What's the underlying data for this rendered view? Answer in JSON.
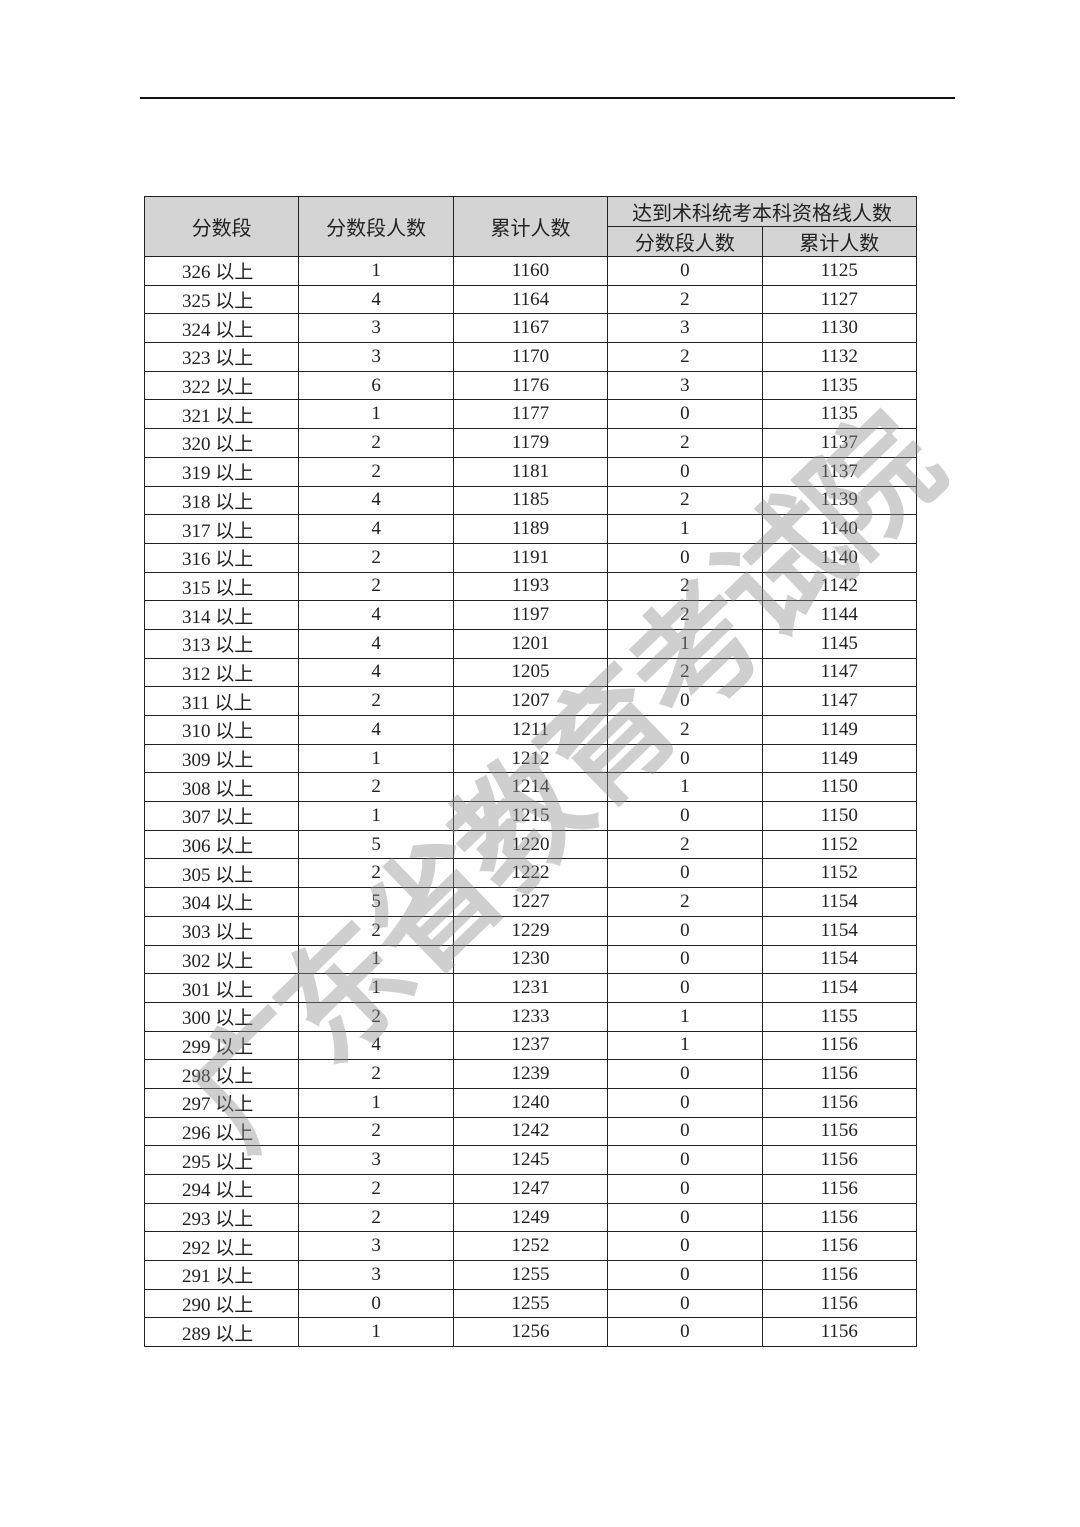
{
  "headers": {
    "score_band": "分数段",
    "band_count": "分数段人数",
    "cumulative": "累计人数",
    "qualified_group": "达到术科统考本科资格线人数",
    "qualified_band_count": "分数段人数",
    "qualified_cumulative": "累计人数"
  },
  "suffix": "以上",
  "watermark": "广东省教育考试院",
  "rows": [
    [
      "326",
      1,
      1160,
      0,
      1125
    ],
    [
      "325",
      4,
      1164,
      2,
      1127
    ],
    [
      "324",
      3,
      1167,
      3,
      1130
    ],
    [
      "323",
      3,
      1170,
      2,
      1132
    ],
    [
      "322",
      6,
      1176,
      3,
      1135
    ],
    [
      "321",
      1,
      1177,
      0,
      1135
    ],
    [
      "320",
      2,
      1179,
      2,
      1137
    ],
    [
      "319",
      2,
      1181,
      0,
      1137
    ],
    [
      "318",
      4,
      1185,
      2,
      1139
    ],
    [
      "317",
      4,
      1189,
      1,
      1140
    ],
    [
      "316",
      2,
      1191,
      0,
      1140
    ],
    [
      "315",
      2,
      1193,
      2,
      1142
    ],
    [
      "314",
      4,
      1197,
      2,
      1144
    ],
    [
      "313",
      4,
      1201,
      1,
      1145
    ],
    [
      "312",
      4,
      1205,
      2,
      1147
    ],
    [
      "311",
      2,
      1207,
      0,
      1147
    ],
    [
      "310",
      4,
      1211,
      2,
      1149
    ],
    [
      "309",
      1,
      1212,
      0,
      1149
    ],
    [
      "308",
      2,
      1214,
      1,
      1150
    ],
    [
      "307",
      1,
      1215,
      0,
      1150
    ],
    [
      "306",
      5,
      1220,
      2,
      1152
    ],
    [
      "305",
      2,
      1222,
      0,
      1152
    ],
    [
      "304",
      5,
      1227,
      2,
      1154
    ],
    [
      "303",
      2,
      1229,
      0,
      1154
    ],
    [
      "302",
      1,
      1230,
      0,
      1154
    ],
    [
      "301",
      1,
      1231,
      0,
      1154
    ],
    [
      "300",
      2,
      1233,
      1,
      1155
    ],
    [
      "299",
      4,
      1237,
      1,
      1156
    ],
    [
      "298",
      2,
      1239,
      0,
      1156
    ],
    [
      "297",
      1,
      1240,
      0,
      1156
    ],
    [
      "296",
      2,
      1242,
      0,
      1156
    ],
    [
      "295",
      3,
      1245,
      0,
      1156
    ],
    [
      "294",
      2,
      1247,
      0,
      1156
    ],
    [
      "293",
      2,
      1249,
      0,
      1156
    ],
    [
      "292",
      3,
      1252,
      0,
      1156
    ],
    [
      "291",
      3,
      1255,
      0,
      1156
    ],
    [
      "290",
      0,
      1255,
      0,
      1156
    ],
    [
      "289",
      1,
      1256,
      0,
      1156
    ]
  ]
}
